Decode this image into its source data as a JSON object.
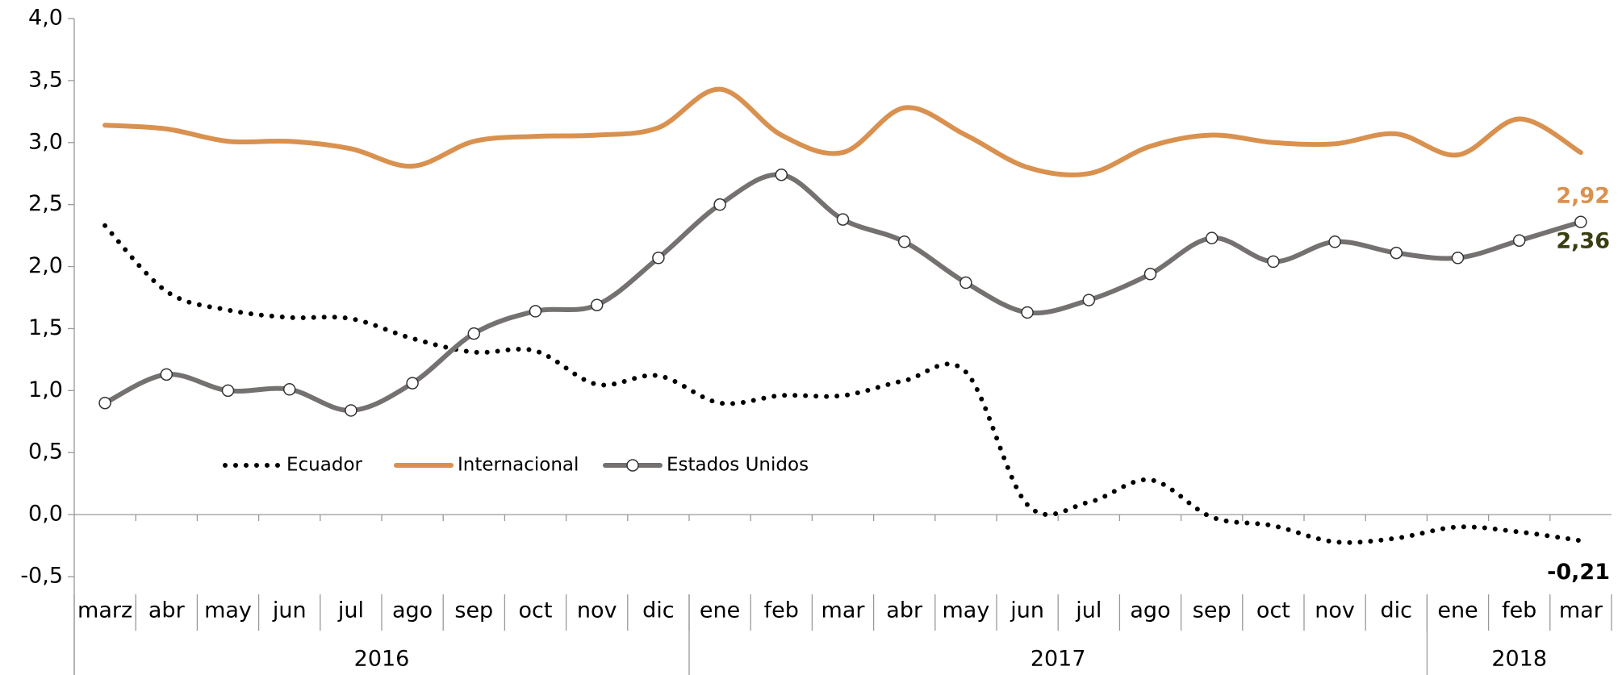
{
  "chart_data": {
    "type": "line",
    "categories": [
      "marz",
      "abr",
      "may",
      "jun",
      "jul",
      "ago",
      "sep",
      "oct",
      "nov",
      "dic",
      "ene",
      "feb",
      "mar",
      "abr",
      "may",
      "jun",
      "jul",
      "ago",
      "sep",
      "oct",
      "nov",
      "dic",
      "ene",
      "feb",
      "mar"
    ],
    "year_groups": [
      {
        "label": "2016",
        "start": 0,
        "end": 9
      },
      {
        "label": "2017",
        "start": 10,
        "end": 21
      },
      {
        "label": "2018",
        "start": 22,
        "end": 24
      }
    ],
    "ylim": [
      -0.5,
      4.0
    ],
    "yticks": [
      {
        "value": -0.5,
        "label": "-0,5"
      },
      {
        "value": 0,
        "label": "0,0"
      },
      {
        "value": 0.5,
        "label": "0,5"
      },
      {
        "value": 1,
        "label": "1,0"
      },
      {
        "value": 1.5,
        "label": "1,5"
      },
      {
        "value": 2,
        "label": "2,0"
      },
      {
        "value": 2.5,
        "label": "2,5"
      },
      {
        "value": 3,
        "label": "3,0"
      },
      {
        "value": 3.5,
        "label": "3,5"
      },
      {
        "value": 4,
        "label": "4,0"
      }
    ],
    "grid": false,
    "series": [
      {
        "name": "Ecuador",
        "color": "#000000",
        "style": "dotted",
        "values": [
          2.33,
          1.8,
          1.65,
          1.59,
          1.58,
          1.42,
          1.31,
          1.32,
          1.05,
          1.12,
          0.9,
          0.96,
          0.96,
          1.08,
          1.15,
          0.08,
          0.1,
          0.28,
          -0.02,
          -0.09,
          -0.22,
          -0.19,
          -0.1,
          -0.14,
          -0.21
        ],
        "value_labels": [
          null,
          null,
          null,
          null,
          null,
          null,
          null,
          null,
          null,
          null,
          null,
          null,
          null,
          null,
          null,
          null,
          null,
          null,
          null,
          null,
          null,
          null,
          null,
          null,
          "-0,21"
        ],
        "label_color": "#000000"
      },
      {
        "name": "Internacional",
        "color": "#d9914f",
        "style": "solid",
        "values": [
          3.14,
          3.11,
          3.01,
          3.01,
          2.95,
          2.81,
          3.01,
          3.05,
          3.06,
          3.12,
          3.43,
          3.06,
          2.92,
          3.28,
          3.06,
          2.8,
          2.75,
          2.97,
          3.06,
          3.0,
          2.99,
          3.07,
          2.9,
          3.19,
          2.92
        ],
        "value_labels": [
          null,
          null,
          null,
          null,
          null,
          null,
          null,
          null,
          null,
          null,
          null,
          null,
          null,
          null,
          null,
          null,
          null,
          null,
          null,
          null,
          null,
          null,
          null,
          null,
          "2,92"
        ],
        "label_color": "#d9914f"
      },
      {
        "name": "Estados Unidos",
        "color": "#767171",
        "style": "solid",
        "markers": true,
        "values": [
          0.9,
          1.13,
          1.0,
          1.01,
          0.84,
          1.06,
          1.46,
          1.64,
          1.69,
          2.07,
          2.5,
          2.74,
          2.38,
          2.2,
          1.87,
          1.63,
          1.73,
          1.94,
          2.23,
          2.04,
          2.2,
          2.11,
          2.07,
          2.21,
          2.36
        ],
        "value_labels": [
          null,
          null,
          null,
          null,
          null,
          null,
          null,
          null,
          null,
          null,
          null,
          null,
          null,
          null,
          null,
          null,
          null,
          null,
          null,
          null,
          null,
          null,
          null,
          null,
          "2,36"
        ],
        "label_color": "#3a3f10"
      }
    ]
  }
}
